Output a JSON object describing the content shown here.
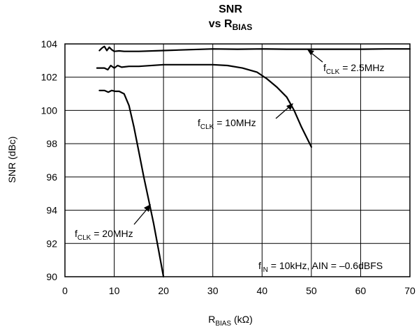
{
  "chart_data": {
    "type": "line",
    "title_line1": "SNR",
    "title_line2_main": "vs R",
    "title_line2_sub": "BIAS",
    "xlabel_main": "R",
    "xlabel_sub": "BIAS",
    "xlabel_unit": " (kΩ)",
    "ylabel": "SNR (dBc)",
    "xlim": [
      0,
      70
    ],
    "ylim": [
      90,
      104
    ],
    "x_ticks": [
      0,
      10,
      20,
      30,
      40,
      50,
      60,
      70
    ],
    "y_ticks": [
      90,
      92,
      94,
      96,
      98,
      100,
      102,
      104
    ],
    "grid": true,
    "series": [
      {
        "name": "fCLK = 2.5MHz",
        "label_main": "f",
        "label_sub": "CLK",
        "label_rest": " = 2.5MHz",
        "x": [
          7,
          7.5,
          8.0,
          8.5,
          9.0,
          9.5,
          10,
          11,
          12,
          15,
          20,
          25,
          30,
          35,
          40,
          45,
          50,
          55,
          60,
          65,
          70
        ],
        "y": [
          103.6,
          103.75,
          103.85,
          103.6,
          103.8,
          103.65,
          103.55,
          103.58,
          103.55,
          103.55,
          103.6,
          103.65,
          103.7,
          103.68,
          103.7,
          103.68,
          103.68,
          103.68,
          103.68,
          103.7,
          103.7
        ]
      },
      {
        "name": "fCLK = 10MHz",
        "label_main": "f",
        "label_sub": "CLK",
        "label_rest": " = 10MHz",
        "x": [
          6.5,
          8,
          8.7,
          9.3,
          10,
          10.7,
          11.5,
          13,
          15,
          20,
          25,
          30,
          33,
          36,
          39,
          41,
          43,
          45,
          46.5,
          48,
          50
        ],
        "y": [
          102.55,
          102.55,
          102.45,
          102.7,
          102.55,
          102.7,
          102.6,
          102.65,
          102.65,
          102.75,
          102.75,
          102.75,
          102.7,
          102.55,
          102.3,
          101.9,
          101.4,
          100.8,
          100.0,
          99.0,
          97.8
        ]
      },
      {
        "name": "fCLK = 20MHz",
        "label_main": "f",
        "label_sub": "CLK",
        "label_rest": " = 20MHz",
        "x": [
          7,
          8,
          8.8,
          9.5,
          10.2,
          11,
          12,
          13,
          14,
          15,
          16,
          17,
          18,
          19,
          20
        ],
        "y": [
          101.2,
          101.2,
          101.1,
          101.2,
          101.15,
          101.15,
          101.0,
          100.3,
          99.0,
          97.5,
          96.0,
          94.6,
          93.2,
          91.6,
          90.0
        ]
      }
    ],
    "annotation_text": {
      "main": "f",
      "sub": "IN",
      "rest": " = 10kHz, AIN = –0.6dBFS"
    }
  }
}
